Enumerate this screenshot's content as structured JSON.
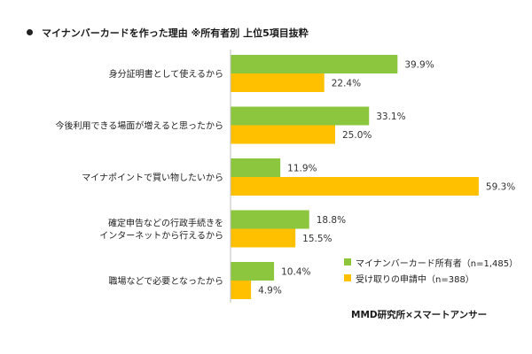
{
  "title": "マイナンバーカードを作った理由 ※所有者別 上位5項目抜粋",
  "source": "MMD研究所×スマートアンサー",
  "colors": {
    "series1": "#8cc63f",
    "series2": "#ffc000",
    "axis": "#bfbfbf",
    "text": "#333333"
  },
  "chart_data": {
    "type": "bar",
    "orientation": "horizontal",
    "title": "マイナンバーカードを作った理由 ※所有者別 上位5項目抜粋",
    "categories": [
      [
        "身分証明書として使えるから"
      ],
      [
        "今後利用できる場面が増えると思ったから"
      ],
      [
        "マイナポイントで買い物したいから"
      ],
      [
        "確定申告などの行政手続きを",
        "インターネットから行えるから"
      ],
      [
        "職場などで必要となったから"
      ]
    ],
    "series": [
      {
        "name": "マイナンバーカード所有者（n=1,485）",
        "values": [
          39.9,
          33.1,
          11.9,
          18.8,
          10.4
        ],
        "labels": [
          "39.9%",
          "33.1%",
          "11.9%",
          "18.8%",
          "10.4%"
        ]
      },
      {
        "name": "受け取りの申請中（n=388）",
        "values": [
          22.4,
          25.0,
          59.3,
          15.5,
          4.9
        ],
        "labels": [
          "22.4%",
          "25.0%",
          "59.3%",
          "15.5%",
          "4.9%"
        ]
      }
    ],
    "unit": "%",
    "xlim": [
      0,
      60
    ],
    "grid": false,
    "legend_position": "bottom-right"
  }
}
